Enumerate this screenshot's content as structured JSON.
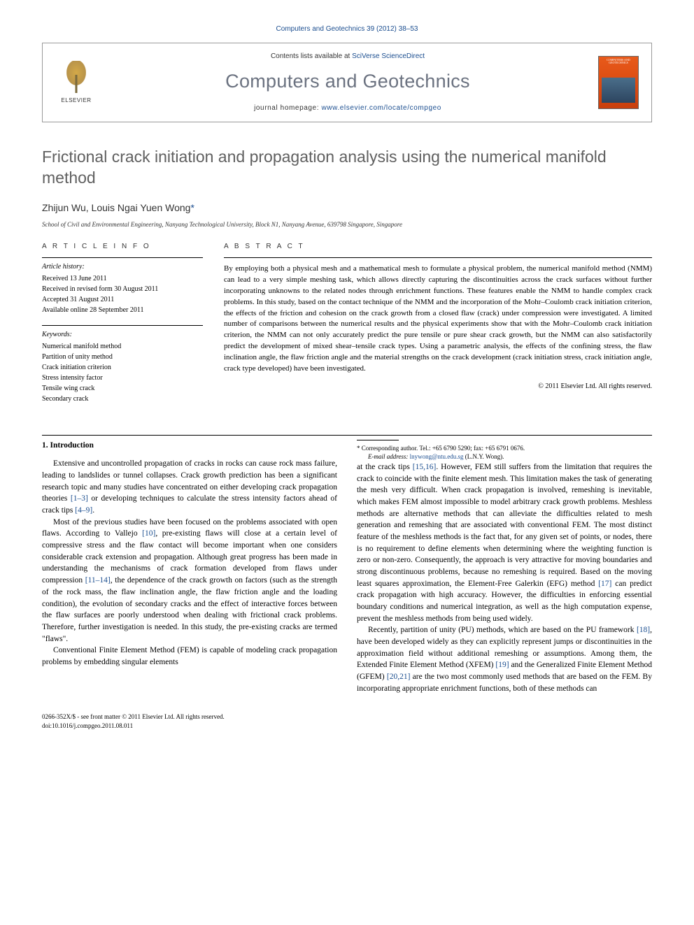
{
  "journal_header": "Computers and Geotechnics 39 (2012) 38–53",
  "masthead": {
    "elsevier_label": "ELSEVIER",
    "contents_prefix": "Contents lists available at ",
    "contents_link": "SciVerse ScienceDirect",
    "journal_title": "Computers and Geotechnics",
    "homepage_prefix": "journal homepage: ",
    "homepage_url": "www.elsevier.com/locate/compgeo",
    "cover_text": "COMPUTERS AND GEOTECHNICS"
  },
  "article": {
    "title": "Frictional crack initiation and propagation analysis using the numerical manifold method",
    "authors": "Zhijun Wu, Louis Ngai Yuen Wong",
    "corr_marker": "*",
    "affiliation": "School of Civil and Environmental Engineering, Nanyang Technological University, Block N1, Nanyang Avenue, 639798 Singapore, Singapore"
  },
  "info": {
    "heading": "A R T I C L E   I N F O",
    "history_label": "Article history:",
    "received": "Received 13 June 2011",
    "revised": "Received in revised form 30 August 2011",
    "accepted": "Accepted 31 August 2011",
    "online": "Available online 28 September 2011",
    "keywords_label": "Keywords:",
    "kw1": "Numerical manifold method",
    "kw2": "Partition of unity method",
    "kw3": "Crack initiation criterion",
    "kw4": "Stress intensity factor",
    "kw5": "Tensile wing crack",
    "kw6": "Secondary crack"
  },
  "abstract": {
    "heading": "A B S T R A C T",
    "text": "By employing both a physical mesh and a mathematical mesh to formulate a physical problem, the numerical manifold method (NMM) can lead to a very simple meshing task, which allows directly capturing the discontinuities across the crack surfaces without further incorporating unknowns to the related nodes through enrichment functions. These features enable the NMM to handle complex crack problems. In this study, based on the contact technique of the NMM and the incorporation of the Mohr–Coulomb crack initiation criterion, the effects of the friction and cohesion on the crack growth from a closed flaw (crack) under compression were investigated. A limited number of comparisons between the numerical results and the physical experiments show that with the Mohr–Coulomb crack initiation criterion, the NMM can not only accurately predict the pure tensile or pure shear crack growth, but the NMM can also satisfactorily predict the development of mixed shear–tensile crack types. Using a parametric analysis, the effects of the confining stress, the flaw inclination angle, the flaw friction angle and the material strengths on the crack development (crack initiation stress, crack initiation angle, crack type developed) have been investigated.",
    "copyright": "© 2011 Elsevier Ltd. All rights reserved."
  },
  "body": {
    "section1": "1. Introduction",
    "p1a": "Extensive and uncontrolled propagation of cracks in rocks can cause rock mass failure, leading to landslides or tunnel collapses. Crack growth prediction has been a significant research topic and many studies have concentrated on either developing crack propagation theories ",
    "c1": "[1–3]",
    "p1b": " or developing techniques to calculate the stress intensity factors ahead of crack tips ",
    "c2": "[4–9]",
    "p1c": ".",
    "p2a": "Most of the previous studies have been focused on the problems associated with open flaws. According to Vallejo ",
    "c3": "[10]",
    "p2b": ", pre-existing flaws will close at a certain level of compressive stress and the flaw contact will become important when one considers considerable crack extension and propagation. Although great progress has been made in understanding the mechanisms of crack formation developed from flaws under compression ",
    "c4": "[11–14]",
    "p2c": ", the dependence of the crack growth on factors (such as the strength of the rock mass, the flaw inclination angle, the flaw friction angle and the loading condition), the evolution of secondary cracks and the effect of interactive forces between the flaw surfaces are poorly understood when dealing with frictional crack problems. Therefore, further investigation is needed. In this study, the pre-existing cracks are termed \"flaws\".",
    "p3": "Conventional Finite Element Method (FEM) is capable of modeling crack propagation problems by embedding singular elements",
    "p4a": "at the crack tips ",
    "c5": "[15,16]",
    "p4b": ". However, FEM still suffers from the limitation that requires the crack to coincide with the finite element mesh. This limitation makes the task of generating the mesh very difficult. When crack propagation is involved, remeshing is inevitable, which makes FEM almost impossible to model arbitrary crack growth problems. Meshless methods are alternative methods that can alleviate the difficulties related to mesh generation and remeshing that are associated with conventional FEM. The most distinct feature of the meshless methods is the fact that, for any given set of points, or nodes, there is no requirement to define elements when determining where the weighting function is zero or non-zero. Consequently, the approach is very attractive for moving boundaries and strong discontinuous problems, because no remeshing is required. Based on the moving least squares approximation, the Element-Free Galerkin (EFG) method ",
    "c6": "[17]",
    "p4c": " can predict crack propagation with high accuracy. However, the difficulties in enforcing essential boundary conditions and numerical integration, as well as the high computation expense, prevent the meshless methods from being used widely.",
    "p5a": "Recently, partition of unity (PU) methods, which are based on the PU framework ",
    "c7": "[18]",
    "p5b": ", have been developed widely as they can explicitly represent jumps or discontinuities in the approximation field without additional remeshing or assumptions. Among them, the Extended Finite Element Method (XFEM) ",
    "c8": "[19]",
    "p5c": " and the Generalized Finite Element Method (GFEM) ",
    "c9": "[20,21]",
    "p5d": " are the two most commonly used methods that are based on the FEM. By incorporating appropriate enrichment functions, both of these methods can"
  },
  "footnote": {
    "corr": "* Corresponding author. Tel.: +65 6790 5290; fax: +65 6791 0676.",
    "email_label": "E-mail address: ",
    "email": "lnywong@ntu.edu.sg",
    "email_suffix": " (L.N.Y. Wong)."
  },
  "footer": {
    "line1": "0266-352X/$ - see front matter © 2011 Elsevier Ltd. All rights reserved.",
    "line2": "doi:10.1016/j.compgeo.2011.08.011"
  }
}
